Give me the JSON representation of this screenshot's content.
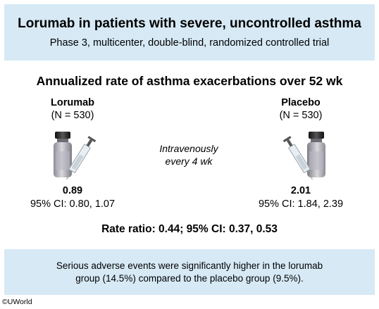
{
  "header": {
    "title": "Lorumab in patients with severe, uncontrolled asthma",
    "subtitle": "Phase 3, multicenter, double-blind, randomized controlled trial"
  },
  "outcome": {
    "heading": "Annualized rate of asthma exacerbations over 52 wk"
  },
  "arms": [
    {
      "name": "Lorumab",
      "n": "(N = 530)",
      "rate": "0.89",
      "ci": "95% CI: 0.80, 1.07",
      "icon": "vial-and-syringe-icon"
    },
    {
      "name": "Placebo",
      "n": "(N = 530)",
      "rate": "2.01",
      "ci": "95% CI: 1.84, 2.39",
      "icon": "vial-and-syringe-icon"
    }
  ],
  "route": {
    "line1": "Intravenously",
    "line2": "every 4 wk"
  },
  "rate_ratio": "Rate ratio: 0.44; 95% CI: 0.37, 0.53",
  "footer": {
    "line1": "Serious adverse events were significantly higher in the lorumab",
    "line2": "group (14.5%) compared to the placebo group (9.5%)."
  },
  "copyright": "©UWorld",
  "colors": {
    "panel_background": "#d6e9f5",
    "vial_cap": "#2b2b2b",
    "vial_body": "#c9c9d0"
  }
}
